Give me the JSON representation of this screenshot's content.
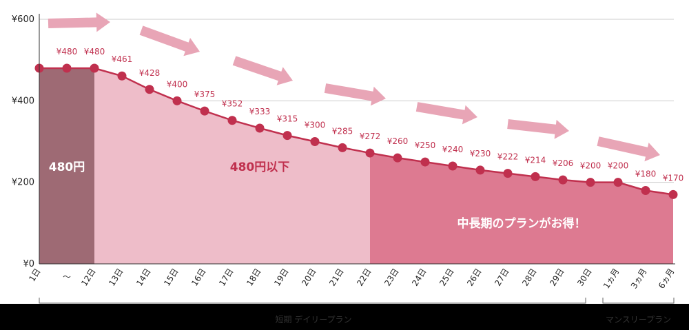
{
  "chart_data": {
    "type": "line",
    "title": "",
    "xlabel": "",
    "ylabel": "",
    "ylim": [
      0,
      600
    ],
    "y_ticks": [
      "¥0",
      "¥200",
      "¥400",
      "¥600"
    ],
    "grid": true,
    "categories": [
      "1日",
      "〜",
      "12日",
      "13日",
      "14日",
      "15日",
      "16日",
      "17日",
      "18日",
      "19日",
      "20日",
      "21日",
      "22日",
      "23日",
      "24日",
      "25日",
      "26日",
      "27日",
      "28日",
      "29日",
      "30日",
      "1ヵ月",
      "3ヵ月",
      "6ヵ月"
    ],
    "values": [
      480,
      480,
      480,
      461,
      428,
      400,
      375,
      352,
      333,
      315,
      300,
      285,
      272,
      260,
      250,
      240,
      230,
      222,
      214,
      206,
      200,
      200,
      180,
      170
    ],
    "data_labels": [
      "",
      "¥480",
      "¥480",
      "¥461",
      "¥428",
      "¥400",
      "¥375",
      "¥352",
      "¥333",
      "¥315",
      "¥300",
      "¥285",
      "¥272",
      "¥260",
      "¥250",
      "¥240",
      "¥230",
      "¥222",
      "¥214",
      "¥206",
      "¥200",
      "¥200",
      "¥180",
      "¥170"
    ],
    "regions": [
      {
        "label": "480円",
        "from_index": 0,
        "to_index": 2,
        "color": "#9e6a74",
        "label_color": "#ffffff"
      },
      {
        "label": "480円以下",
        "from_index": 2,
        "to_index": 12,
        "color": "#eebdc9",
        "label_color": "#c0304e"
      },
      {
        "label": "中長期のプランがお得！",
        "from_index": 12,
        "to_index": 23,
        "color": "#dd7a91",
        "label_color": "#ffffff"
      }
    ],
    "groups": [
      {
        "label": "短期 デイリープラン",
        "from_index": 0,
        "to_index": 20
      },
      {
        "label": "マンスリープラン",
        "from_index": 21,
        "to_index": 23
      }
    ],
    "colors": {
      "line": "#c0304e",
      "point": "#c0304e",
      "arrow": "#e8a5b6",
      "grid": "#cccccc",
      "axis": "#333333"
    }
  }
}
